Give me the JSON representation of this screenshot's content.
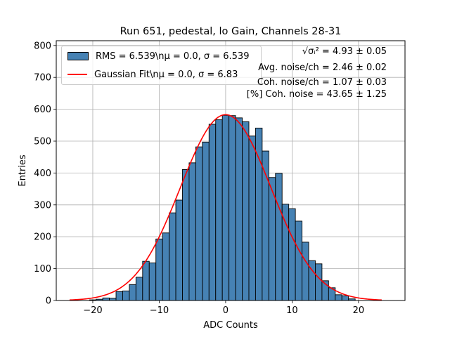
{
  "chart_data": {
    "type": "bar",
    "title": "Run 651, pedestal, lo Gain, Channels 28-31",
    "xlabel": "ADC Counts",
    "ylabel": "Entries",
    "xlim": [
      -25.5,
      27
    ],
    "ylim": [
      0,
      815
    ],
    "xticks": [
      -20,
      -10,
      0,
      10,
      20
    ],
    "yticks": [
      0,
      100,
      200,
      300,
      400,
      500,
      600,
      700,
      800
    ],
    "grid": true,
    "bar_color": "#4682b4",
    "bin_width": 1,
    "bins": [
      [
        -20,
        2
      ],
      [
        -19,
        4
      ],
      [
        -18,
        8
      ],
      [
        -17,
        7
      ],
      [
        -16,
        28
      ],
      [
        -15,
        30
      ],
      [
        -14,
        50
      ],
      [
        -13,
        73
      ],
      [
        -12,
        123
      ],
      [
        -11,
        118
      ],
      [
        -10,
        193
      ],
      [
        -9,
        212
      ],
      [
        -8,
        275
      ],
      [
        -7,
        315
      ],
      [
        -6,
        411
      ],
      [
        -5,
        432
      ],
      [
        -4,
        482
      ],
      [
        -3,
        497
      ],
      [
        -2,
        553
      ],
      [
        -1,
        567
      ],
      [
        0,
        581
      ],
      [
        1,
        580
      ],
      [
        2,
        573
      ],
      [
        3,
        561
      ],
      [
        4,
        516
      ],
      [
        5,
        541
      ],
      [
        6,
        469
      ],
      [
        7,
        386
      ],
      [
        8,
        399
      ],
      [
        9,
        302
      ],
      [
        10,
        288
      ],
      [
        11,
        249
      ],
      [
        12,
        183
      ],
      [
        13,
        125
      ],
      [
        14,
        115
      ],
      [
        15,
        62
      ],
      [
        16,
        40
      ],
      [
        17,
        18
      ],
      [
        18,
        15
      ],
      [
        19,
        5
      ]
    ],
    "series": [
      {
        "name": "RMS = 6.539\\nμ = 0.0, σ = 6.539",
        "kind": "histogram",
        "color": "#4682b4"
      },
      {
        "name": "Gaussian Fit\\nμ = 0.0, σ = 6.83",
        "kind": "line",
        "color": "#ff0000",
        "amplitude": 583,
        "mu": 0.0,
        "sigma": 6.83,
        "x_range": [
          -23.5,
          23.5
        ]
      }
    ],
    "legend_position": "upper left",
    "annotations": [
      "√σᵢ² = 4.93 ± 0.05",
      "Avg. noise/ch = 2.46 ± 0.02",
      "Coh. noise/ch = 1.07 ± 0.03",
      "[%] Coh. noise = 43.65 ± 1.25"
    ]
  },
  "legend": {
    "rms_label": "RMS = 6.539\\nμ = 0.0, σ = 6.539",
    "fit_label": "Gaussian Fit\\nμ = 0.0, σ = 6.83"
  },
  "annotations": {
    "line1": "√σᵢ² = 4.93 ± 0.05",
    "line2": "Avg. noise/ch = 2.46 ± 0.02",
    "line3": "Coh. noise/ch = 1.07 ± 0.03",
    "line4": "[%] Coh. noise = 43.65 ± 1.25"
  }
}
